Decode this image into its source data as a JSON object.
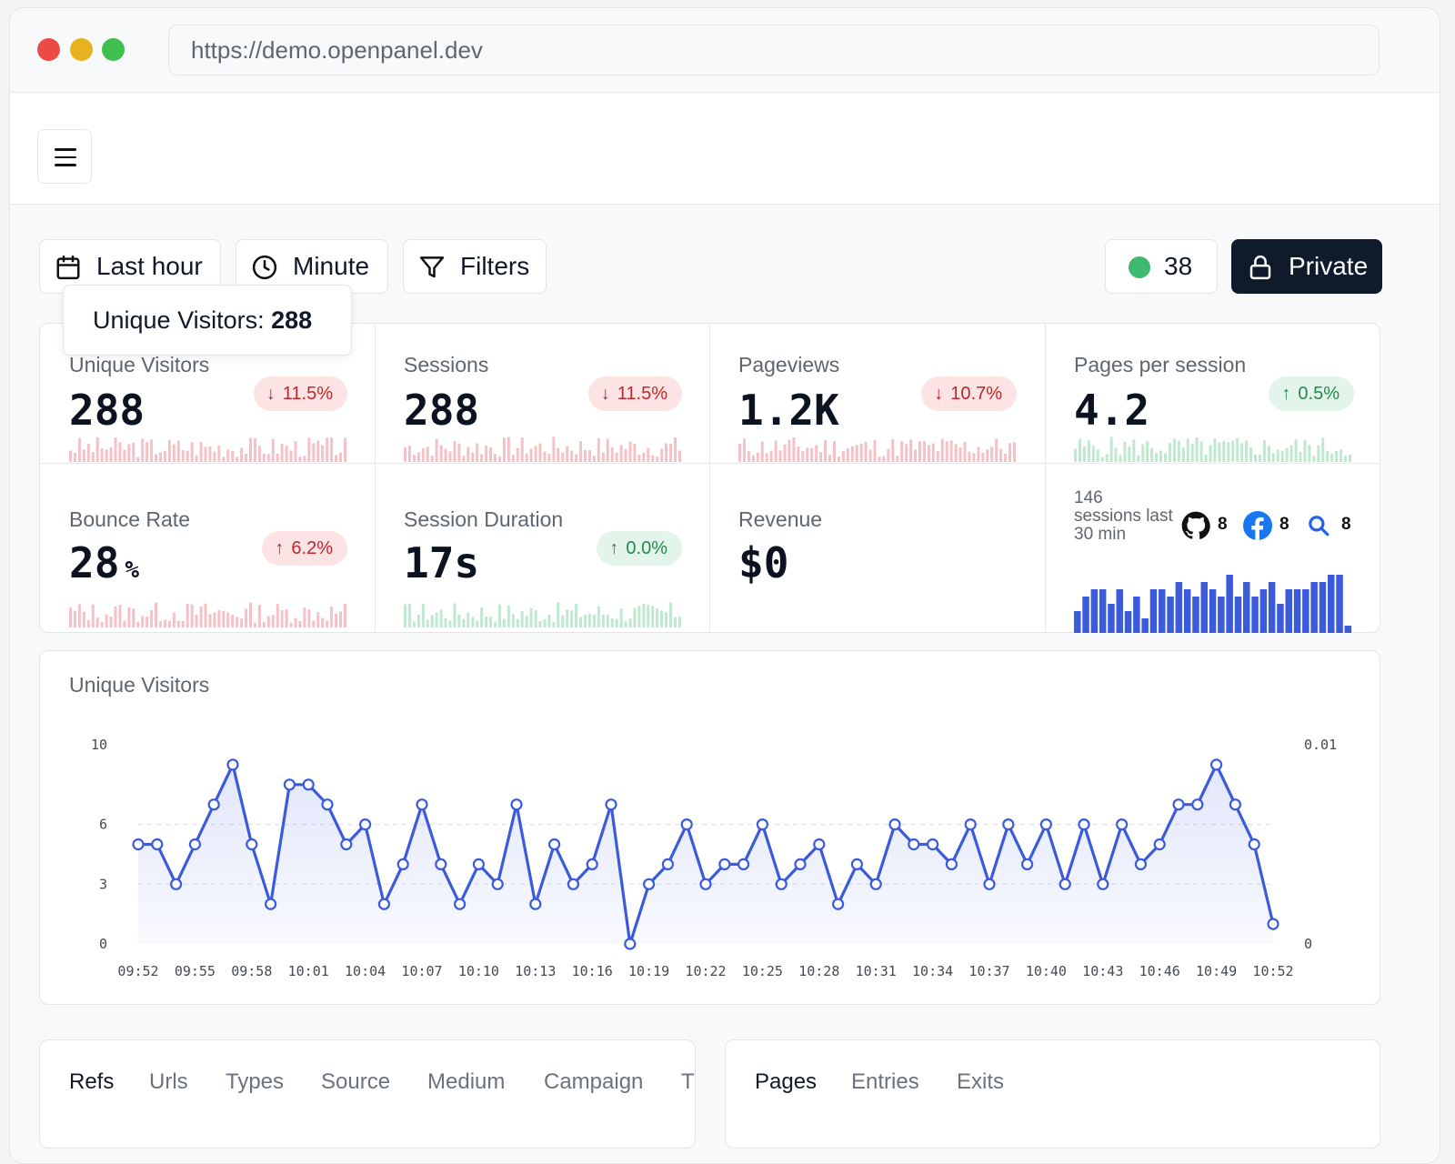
{
  "browser": {
    "url": "https://demo.openpanel.dev"
  },
  "toolbar": {
    "range_label": "Last hour",
    "interval_label": "Minute",
    "filters_label": "Filters",
    "live_count": "38",
    "private_label": "Private"
  },
  "tooltip": {
    "label": "Unique Visitors:",
    "value": "288"
  },
  "stats": [
    {
      "title": "Unique Visitors",
      "value": "288",
      "unit": "",
      "change": "11.5%",
      "direction": "down"
    },
    {
      "title": "Sessions",
      "value": "288",
      "unit": "",
      "change": "11.5%",
      "direction": "down"
    },
    {
      "title": "Pageviews",
      "value": "1.2K",
      "unit": "",
      "change": "10.7%",
      "direction": "down"
    },
    {
      "title": "Pages per session",
      "value": "4.2",
      "unit": "",
      "change": "0.5%",
      "direction": "up"
    },
    {
      "title": "Bounce Rate",
      "value": "28",
      "unit": "%",
      "change": "6.2%",
      "direction": "down_bad"
    },
    {
      "title": "Session Duration",
      "value": "17s",
      "unit": "",
      "change": "0.0%",
      "direction": "up"
    },
    {
      "title": "Revenue",
      "value": "$0",
      "unit": "",
      "change": "",
      "direction": "none"
    }
  ],
  "realtime": {
    "summary": "146 sessions last 30 min",
    "referrers": [
      {
        "icon": "github-icon",
        "count": "8"
      },
      {
        "icon": "facebook-icon",
        "count": "8"
      },
      {
        "icon": "search-icon",
        "count": "8"
      }
    ],
    "bars": [
      3,
      5,
      6,
      6,
      4,
      6,
      3,
      5,
      2,
      6,
      6,
      5,
      7,
      6,
      5,
      7,
      6,
      5,
      8,
      5,
      7,
      5,
      6,
      7,
      4,
      6,
      6,
      6,
      7,
      7,
      8,
      8,
      1
    ]
  },
  "colors": {
    "primary": "#3b5bdb",
    "down": "#c0262d",
    "up": "#23894f",
    "live": "#3fb872",
    "dark": "#0f1a2b"
  },
  "chart_data": {
    "type": "line",
    "title": "Unique Visitors",
    "y_ticks": [
      "0",
      "3",
      "6",
      "10"
    ],
    "y_right_ticks": [
      "0",
      "0.01"
    ],
    "ylim": [
      0,
      10
    ],
    "x_ticks": [
      "09:52",
      "09:55",
      "09:58",
      "10:01",
      "10:04",
      "10:07",
      "10:10",
      "10:13",
      "10:16",
      "10:19",
      "10:22",
      "10:25",
      "10:28",
      "10:31",
      "10:34",
      "10:37",
      "10:40",
      "10:43",
      "10:46",
      "10:49",
      "10:52"
    ],
    "series": [
      {
        "name": "",
        "values": [
          5,
          5,
          3,
          5,
          7,
          9,
          5,
          2,
          8,
          8,
          7,
          5,
          6,
          2,
          4,
          7,
          4,
          2,
          4,
          3,
          7,
          2,
          5,
          3,
          4,
          7,
          0,
          3,
          4,
          6,
          3,
          4,
          4,
          6,
          3,
          4,
          5,
          2,
          4,
          3,
          6,
          5,
          5,
          4,
          6,
          3,
          6,
          4,
          6,
          3,
          6,
          3,
          6,
          4,
          5,
          7,
          7,
          9,
          7,
          5,
          1
        ]
      }
    ]
  },
  "tabs_left": [
    {
      "label": "Refs",
      "active": true
    },
    {
      "label": "Urls",
      "active": false
    },
    {
      "label": "Types",
      "active": false
    },
    {
      "label": "Source",
      "active": false
    },
    {
      "label": "Medium",
      "active": false
    },
    {
      "label": "Campaign",
      "active": false
    },
    {
      "label": "T",
      "active": false
    }
  ],
  "tabs_right": [
    {
      "label": "Pages",
      "active": true
    },
    {
      "label": "Entries",
      "active": false
    },
    {
      "label": "Exits",
      "active": false
    }
  ]
}
